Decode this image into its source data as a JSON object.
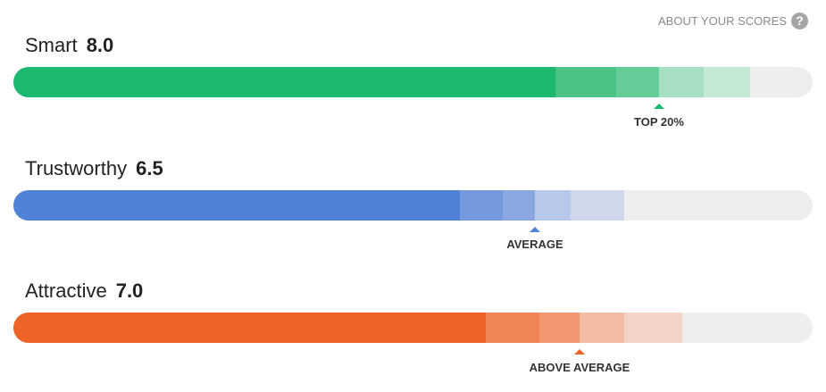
{
  "header": {
    "link": "ABOUT YOUR SCORES",
    "help_icon": "?"
  },
  "scores": [
    {
      "label": "Smart",
      "score": "8.0",
      "rank": "TOP 20%"
    },
    {
      "label": "Trustworthy",
      "score": "6.5",
      "rank": "AVERAGE"
    },
    {
      "label": "Attractive",
      "score": "7.0",
      "rank": "ABOVE AVERAGE"
    }
  ]
}
